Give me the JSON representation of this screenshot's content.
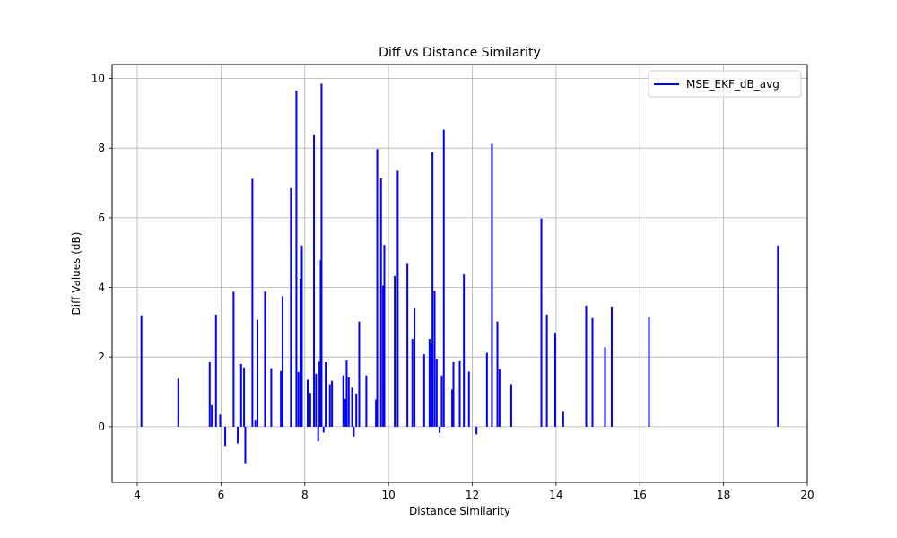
{
  "chart_data": {
    "type": "bar",
    "title": "Diff vs Distance Similarity",
    "xlabel": "Distance Similarity",
    "ylabel": "Diff Values (dB)",
    "xlim": [
      3.4,
      20
    ],
    "ylim": [
      -1.6,
      10.4
    ],
    "x_ticks": [
      4,
      6,
      8,
      10,
      12,
      14,
      16,
      18,
      20
    ],
    "y_ticks": [
      0,
      2,
      4,
      6,
      8,
      10
    ],
    "grid": true,
    "legend": "top-right",
    "series": [
      {
        "name": "MSE_EKF_dB_avg",
        "color": "#0000ff",
        "points": [
          [
            4.1,
            3.2
          ],
          [
            4.98,
            1.38
          ],
          [
            5.73,
            1.85
          ],
          [
            5.78,
            0.62
          ],
          [
            5.88,
            3.22
          ],
          [
            5.98,
            0.35
          ],
          [
            6.1,
            -0.55
          ],
          [
            6.3,
            3.88
          ],
          [
            6.4,
            -0.48
          ],
          [
            6.48,
            1.8
          ],
          [
            6.55,
            1.7
          ],
          [
            6.58,
            -1.05
          ],
          [
            6.75,
            7.12
          ],
          [
            6.82,
            0.2
          ],
          [
            6.87,
            3.07
          ],
          [
            7.05,
            3.88
          ],
          [
            7.2,
            1.68
          ],
          [
            7.43,
            1.6
          ],
          [
            7.47,
            3.75
          ],
          [
            7.67,
            6.85
          ],
          [
            7.8,
            9.65
          ],
          [
            7.85,
            1.57
          ],
          [
            7.9,
            4.25
          ],
          [
            7.93,
            5.2
          ],
          [
            8.07,
            1.35
          ],
          [
            8.13,
            0.97
          ],
          [
            8.22,
            8.37
          ],
          [
            8.27,
            1.52
          ],
          [
            8.32,
            -0.42
          ],
          [
            8.35,
            1.87
          ],
          [
            8.38,
            4.78
          ],
          [
            8.4,
            9.85
          ],
          [
            8.45,
            -0.17
          ],
          [
            8.5,
            1.85
          ],
          [
            8.6,
            1.22
          ],
          [
            8.65,
            1.32
          ],
          [
            8.92,
            1.47
          ],
          [
            8.97,
            0.8
          ],
          [
            9.0,
            1.9
          ],
          [
            9.05,
            1.42
          ],
          [
            9.13,
            1.12
          ],
          [
            9.17,
            -0.28
          ],
          [
            9.23,
            0.95
          ],
          [
            9.3,
            3.02
          ],
          [
            9.47,
            1.47
          ],
          [
            9.7,
            0.78
          ],
          [
            9.73,
            7.97
          ],
          [
            9.82,
            7.13
          ],
          [
            9.87,
            4.05
          ],
          [
            9.9,
            5.22
          ],
          [
            10.15,
            4.33
          ],
          [
            10.22,
            7.35
          ],
          [
            10.45,
            4.7
          ],
          [
            10.57,
            2.52
          ],
          [
            10.62,
            3.4
          ],
          [
            10.85,
            2.08
          ],
          [
            10.98,
            2.52
          ],
          [
            11.02,
            2.38
          ],
          [
            11.05,
            7.88
          ],
          [
            11.1,
            3.9
          ],
          [
            11.15,
            1.95
          ],
          [
            11.22,
            -0.18
          ],
          [
            11.27,
            1.47
          ],
          [
            11.32,
            8.53
          ],
          [
            11.52,
            1.07
          ],
          [
            11.55,
            1.85
          ],
          [
            11.7,
            1.88
          ],
          [
            11.8,
            4.37
          ],
          [
            11.92,
            1.58
          ],
          [
            12.1,
            -0.22
          ],
          [
            12.35,
            2.12
          ],
          [
            12.47,
            8.12
          ],
          [
            12.6,
            3.02
          ],
          [
            12.65,
            1.65
          ],
          [
            12.93,
            1.22
          ],
          [
            13.65,
            5.98
          ],
          [
            13.78,
            3.22
          ],
          [
            13.98,
            2.7
          ],
          [
            14.17,
            0.45
          ],
          [
            14.72,
            3.48
          ],
          [
            14.87,
            3.12
          ],
          [
            15.17,
            2.28
          ],
          [
            15.33,
            3.45
          ],
          [
            16.22,
            3.15
          ],
          [
            19.3,
            5.2
          ]
        ]
      }
    ]
  }
}
